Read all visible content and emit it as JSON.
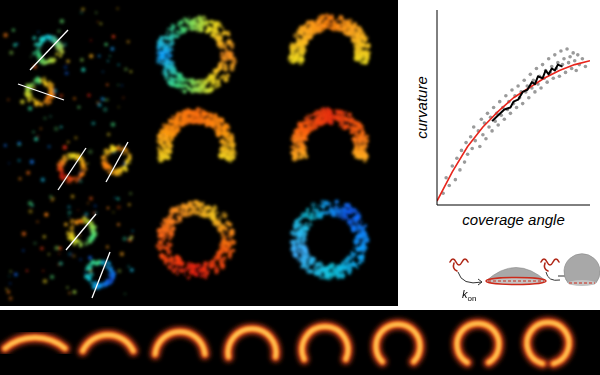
{
  "chart_data": {
    "type": "scatter",
    "x_label": "coverage angle",
    "y_label": "curvature",
    "xlim": [
      0,
      1
    ],
    "ylim": [
      0,
      1
    ],
    "xticks": [],
    "yticks": [],
    "tick_labels": false,
    "grid": false,
    "series": [
      {
        "type": "scatter",
        "color": "#9a9a9a",
        "marker": "circle",
        "x": [
          0.04,
          0.06,
          0.08,
          0.1,
          0.12,
          0.13,
          0.15,
          0.16,
          0.18,
          0.19,
          0.2,
          0.22,
          0.23,
          0.24,
          0.25,
          0.27,
          0.28,
          0.29,
          0.3,
          0.31,
          0.32,
          0.33,
          0.34,
          0.35,
          0.36,
          0.37,
          0.38,
          0.39,
          0.4,
          0.41,
          0.42,
          0.43,
          0.44,
          0.45,
          0.46,
          0.47,
          0.48,
          0.49,
          0.5,
          0.51,
          0.52,
          0.53,
          0.54,
          0.55,
          0.56,
          0.57,
          0.58,
          0.59,
          0.6,
          0.61,
          0.62,
          0.63,
          0.64,
          0.65,
          0.66,
          0.67,
          0.68,
          0.69,
          0.7,
          0.71,
          0.72,
          0.73,
          0.74,
          0.75,
          0.76,
          0.77,
          0.78,
          0.79,
          0.8,
          0.81,
          0.82,
          0.83,
          0.84,
          0.85,
          0.86,
          0.87,
          0.88,
          0.89,
          0.9,
          0.91,
          0.92,
          0.93,
          0.95,
          0.97
        ],
        "values": [
          0.06,
          0.14,
          0.1,
          0.2,
          0.13,
          0.24,
          0.18,
          0.28,
          0.22,
          0.32,
          0.26,
          0.35,
          0.29,
          0.4,
          0.33,
          0.38,
          0.3,
          0.44,
          0.36,
          0.42,
          0.34,
          0.47,
          0.4,
          0.45,
          0.38,
          0.5,
          0.43,
          0.47,
          0.41,
          0.53,
          0.46,
          0.5,
          0.44,
          0.56,
          0.49,
          0.53,
          0.47,
          0.59,
          0.52,
          0.56,
          0.5,
          0.61,
          0.55,
          0.58,
          0.52,
          0.64,
          0.58,
          0.61,
          0.55,
          0.67,
          0.6,
          0.64,
          0.58,
          0.7,
          0.62,
          0.66,
          0.6,
          0.72,
          0.65,
          0.69,
          0.63,
          0.75,
          0.68,
          0.71,
          0.65,
          0.77,
          0.7,
          0.73,
          0.66,
          0.79,
          0.72,
          0.75,
          0.68,
          0.8,
          0.73,
          0.76,
          0.7,
          0.78,
          0.74,
          0.69,
          0.77,
          0.72,
          0.75,
          0.71
        ]
      },
      {
        "type": "line",
        "color": "#e8251c",
        "line_style": "solid",
        "x": [
          0.0,
          0.1,
          0.2,
          0.3,
          0.4,
          0.5,
          0.6,
          0.7,
          0.8,
          0.9,
          1.0
        ],
        "values": [
          0.02,
          0.17,
          0.3,
          0.4,
          0.48,
          0.55,
          0.6,
          0.65,
          0.69,
          0.72,
          0.74
        ]
      },
      {
        "type": "line",
        "color": "#000000",
        "line_style": "solid",
        "x": [
          0.36,
          0.4,
          0.44,
          0.48,
          0.5,
          0.53,
          0.56,
          0.59,
          0.62,
          0.64,
          0.66,
          0.69,
          0.71,
          0.73,
          0.75,
          0.77,
          0.79,
          0.82
        ],
        "values": [
          0.43,
          0.46,
          0.49,
          0.5,
          0.53,
          0.54,
          0.58,
          0.59,
          0.63,
          0.62,
          0.66,
          0.65,
          0.69,
          0.67,
          0.7,
          0.69,
          0.72,
          0.71
        ]
      }
    ]
  },
  "diagram": {
    "rate_symbol": "k",
    "rate_subscript": "on"
  }
}
